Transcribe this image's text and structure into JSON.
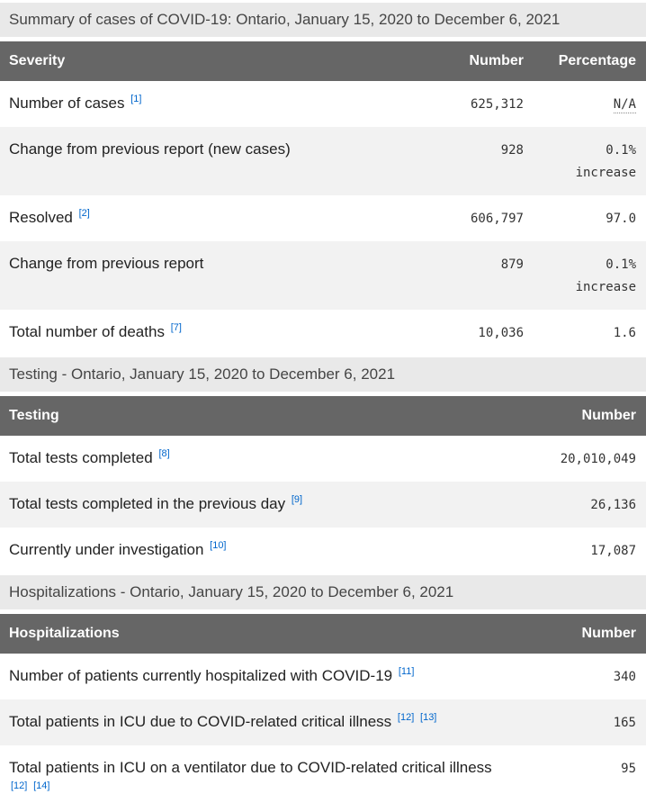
{
  "colors": {
    "header_bg": "#666666",
    "header_text": "#ffffff",
    "section_bar_bg": "#e9e9e9",
    "stripe_bg": "#f2f2f2",
    "title_text": "#454545",
    "text": "#222222",
    "number_text": "#333333",
    "link_blue": "#0066cc"
  },
  "tables": [
    {
      "id": "severity",
      "title": "Summary of cases of COVID-19: Ontario, January 15, 2020 to December 6, 2021",
      "columns": [
        "Severity",
        "Number",
        "Percentage"
      ],
      "rows": [
        {
          "label": "Number of cases",
          "footnotes": [
            "[1]"
          ],
          "number": "625,312",
          "percentage": "N/A",
          "abbr": true
        },
        {
          "label": "Change from previous report (new cases)",
          "footnotes": [],
          "number": "928",
          "percentage": "0.1%",
          "qualifier": "increase"
        },
        {
          "label": "Resolved",
          "footnotes": [
            "[2]"
          ],
          "number": "606,797",
          "percentage": "97.0"
        },
        {
          "label": "Change from previous report",
          "footnotes": [],
          "number": "879",
          "percentage": "0.1%",
          "qualifier": "increase"
        },
        {
          "label": "Total number of deaths",
          "footnotes": [
            "[7]"
          ],
          "number": "10,036",
          "percentage": "1.6"
        }
      ]
    },
    {
      "id": "testing",
      "title": "Testing - Ontario, January 15, 2020 to December 6, 2021",
      "columns": [
        "Testing",
        "Number"
      ],
      "rows": [
        {
          "label": "Total tests completed",
          "footnotes": [
            "[8]"
          ],
          "number": "20,010,049"
        },
        {
          "label": "Total tests completed in the previous day",
          "footnotes": [
            "[9]"
          ],
          "number": "26,136"
        },
        {
          "label": "Currently under investigation",
          "footnotes": [
            "[10]"
          ],
          "number": "17,087"
        }
      ]
    },
    {
      "id": "hospitalizations",
      "title": "Hospitalizations - Ontario, January 15, 2020 to December 6, 2021",
      "columns": [
        "Hospitalizations",
        "Number"
      ],
      "rows": [
        {
          "label": "Number of patients currently hospitalized with COVID-19",
          "footnotes": [
            "[11]"
          ],
          "number": "340"
        },
        {
          "label": "Total patients in ICU due to COVID-related critical illness",
          "footnotes": [
            "[12]",
            "[13]"
          ],
          "number": "165"
        },
        {
          "label": "Total patients in ICU on a ventilator due to COVID-related critical illness",
          "footnotes": [
            "[12]",
            "[14]"
          ],
          "number": "95"
        }
      ]
    }
  ]
}
